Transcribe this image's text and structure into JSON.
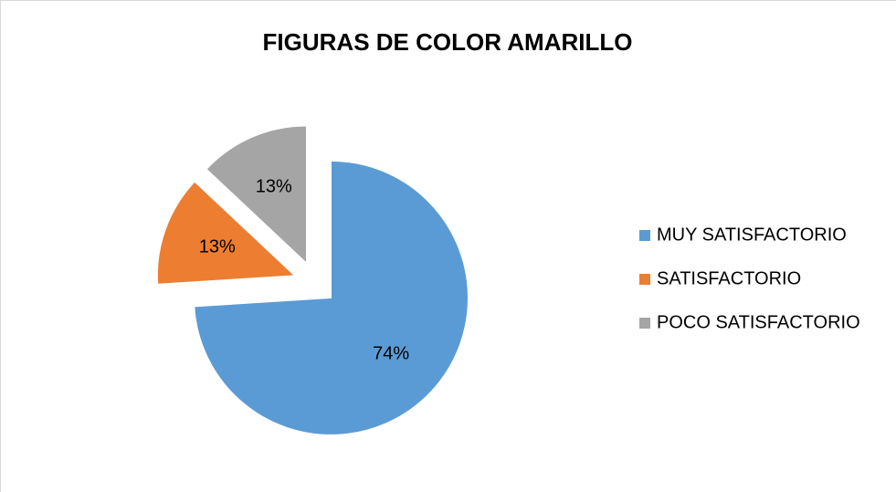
{
  "chart_data": {
    "type": "pie",
    "title": "FIGURAS DE COLOR AMARILLO",
    "categories": [
      "MUY SATISFACTORIO",
      "SATISFACTORIO",
      "POCO SATISFACTORIO"
    ],
    "values": [
      74,
      13,
      13
    ],
    "value_labels": [
      "74%",
      "13%",
      "13%"
    ],
    "colors": [
      "#5b9bd5",
      "#ed7d31",
      "#a5a5a5"
    ],
    "legend": "right"
  }
}
